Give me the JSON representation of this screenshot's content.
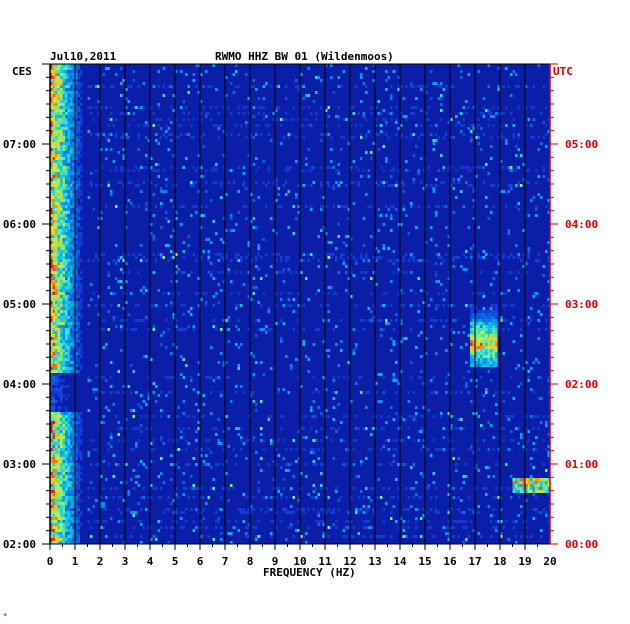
{
  "chart_data": {
    "type": "heatmap",
    "date": "Jul10,2011",
    "title": "RWMO HHZ BW 01 (Wildenmoos)",
    "left_timezone": "CES",
    "right_timezone": "UTC",
    "xlabel": "FREQUENCY (HZ)",
    "x_ticks": [
      "0",
      "1",
      "2",
      "3",
      "4",
      "5",
      "6",
      "7",
      "8",
      "9",
      "10",
      "11",
      "12",
      "13",
      "14",
      "15",
      "16",
      "17",
      "18",
      "19",
      "20"
    ],
    "xlim": [
      0,
      20
    ],
    "left_time_ticks": [
      "07:00",
      "06:00",
      "05:00",
      "04:00",
      "03:00",
      "02:00"
    ],
    "right_time_ticks": [
      "05:00",
      "04:00",
      "03:00",
      "02:00",
      "01:00",
      "00:00"
    ],
    "colors": {
      "background": "#0a1ea8",
      "axis_left": "#000000",
      "axis_right": "#d40000",
      "grid": "#000000"
    },
    "features": [
      {
        "name": "low-frequency band",
        "freq_range_hz": [
          0,
          1.5
        ],
        "note": "strong energy through whole window, weaker 03:40–04:10 CES"
      },
      {
        "name": "17 Hz burst",
        "freq_range_hz": [
          16.8,
          17.8
        ],
        "time_ces": [
          "04:15",
          "05:05"
        ]
      },
      {
        "name": "high-frequency burst",
        "freq_range_hz": [
          18.5,
          20
        ],
        "time_ces": [
          "02:40",
          "02:50"
        ]
      }
    ]
  },
  "footer_mark": "*"
}
